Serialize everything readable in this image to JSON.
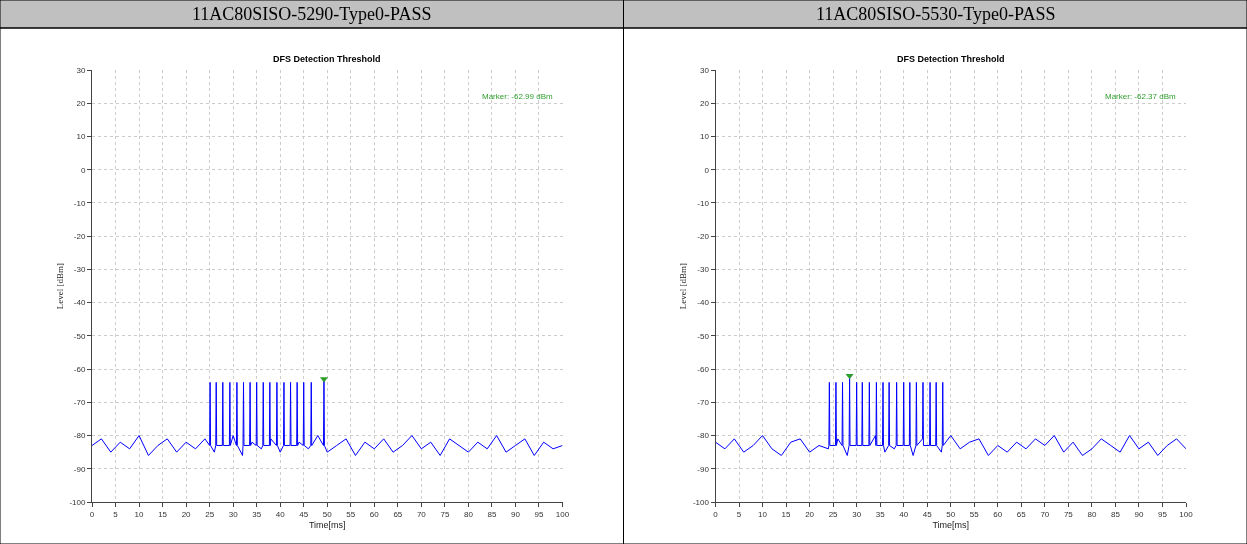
{
  "chart_data": [
    {
      "type": "line",
      "title": "11AC80SISO-5290-Type0-PASS",
      "subtitle": "DFS Detection Threshold",
      "xlabel": "Time[ms]",
      "ylabel": "Level [dBm]",
      "annotations": [
        "Marker: -62.99 dBm"
      ],
      "xlim": [
        0,
        100
      ],
      "xticks": [
        0,
        5,
        10,
        15,
        20,
        25,
        30,
        35,
        40,
        45,
        50,
        55,
        60,
        65,
        70,
        75,
        80,
        85,
        90,
        95,
        100
      ],
      "ylim": [
        -100,
        30
      ],
      "yticks": [
        -100,
        -90,
        -80,
        -70,
        -60,
        -50,
        -40,
        -30,
        -20,
        -10,
        0,
        10,
        20,
        30
      ],
      "grid": true,
      "series": [
        {
          "color": "#0000ff",
          "x": [
            0,
            2,
            4,
            6,
            8,
            10,
            12,
            14,
            16,
            18,
            20,
            22,
            24,
            25.0,
            25.1,
            25.2,
            26,
            26.3,
            26.4,
            26.5,
            27.7,
            27.8,
            27.9,
            28,
            29.2,
            29.3,
            29.4,
            30,
            30.7,
            30.8,
            30.9,
            32,
            32.1,
            32.2,
            32.3,
            33.5,
            33.6,
            33.7,
            34,
            34.9,
            35.0,
            35.1,
            36,
            36.3,
            36.4,
            36.5,
            37.7,
            37.8,
            37.9,
            38,
            39.2,
            39.3,
            39.4,
            40,
            40.7,
            40.8,
            40.9,
            42,
            42.1,
            42.2,
            42.3,
            43.5,
            43.6,
            43.7,
            44,
            44.9,
            45.0,
            45.1,
            46,
            46.5,
            46.6,
            46.7,
            48,
            49.2,
            49.3,
            49.4,
            50,
            52,
            54,
            56,
            58,
            60,
            62,
            64,
            66,
            68,
            70,
            72,
            74,
            76,
            78,
            80,
            82,
            84,
            86,
            88,
            90,
            92,
            94,
            96,
            98,
            100
          ],
          "values": [
            -83,
            -81,
            -85,
            -82,
            -84,
            -80,
            -86,
            -83,
            -81,
            -85,
            -82,
            -84,
            -81,
            -83,
            -64,
            -83,
            -85,
            -83,
            -64,
            -83,
            -83,
            -64,
            -83,
            -83,
            -83,
            -64,
            -83,
            -80,
            -83,
            -64,
            -83,
            -86,
            -83,
            -64,
            -83,
            -83,
            -64,
            -83,
            -82,
            -83,
            -64,
            -83,
            -84,
            -83,
            -64,
            -83,
            -83,
            -64,
            -83,
            -81,
            -83,
            -64,
            -83,
            -85,
            -83,
            -64,
            -83,
            -83,
            -83,
            -64,
            -83,
            -83,
            -64,
            -83,
            -82,
            -83,
            -64,
            -83,
            -84,
            -83,
            -64,
            -83,
            -80,
            -83,
            -63,
            -83,
            -85,
            -83,
            -81,
            -86,
            -82,
            -84,
            -81,
            -85,
            -83,
            -80,
            -84,
            -82,
            -86,
            -81,
            -83,
            -85,
            -82,
            -84,
            -80,
            -85,
            -83,
            -81,
            -86,
            -82,
            -84,
            -83
          ]
        },
        {
          "type": "scatter",
          "marker": "triangle",
          "color": "#2e9e2e",
          "x": [
            49.3
          ],
          "values": [
            -63
          ]
        }
      ]
    },
    {
      "type": "line",
      "title": "11AC80SISO-5530-Type0-PASS",
      "subtitle": "DFS Detection Threshold",
      "xlabel": "Time[ms]",
      "ylabel": "Level [dBm]",
      "annotations": [
        "Marker: -62.37 dBm"
      ],
      "xlim": [
        0,
        100
      ],
      "xticks": [
        0,
        5,
        10,
        15,
        20,
        25,
        30,
        35,
        40,
        45,
        50,
        55,
        60,
        65,
        70,
        75,
        80,
        85,
        90,
        95,
        100
      ],
      "ylim": [
        -100,
        30
      ],
      "yticks": [
        -100,
        -90,
        -80,
        -70,
        -60,
        -50,
        -40,
        -30,
        -20,
        -10,
        0,
        10,
        20,
        30
      ],
      "grid": true,
      "series": [
        {
          "color": "#0000ff",
          "x": [
            0,
            2,
            4,
            6,
            8,
            10,
            12,
            14,
            16,
            18,
            20,
            22,
            24,
            24.1,
            24.2,
            24.3,
            25.5,
            25.6,
            25.7,
            26,
            26.9,
            27.0,
            27.1,
            28,
            28.4,
            28.5,
            28.6,
            29.9,
            30.0,
            30.1,
            31.1,
            31.2,
            31.3,
            32,
            32.6,
            32.7,
            32.8,
            34,
            34.1,
            34.2,
            34.3,
            35.5,
            35.6,
            35.7,
            36,
            36.8,
            36.9,
            37.0,
            38,
            38.4,
            38.5,
            38.6,
            39.9,
            40.0,
            40.1,
            41.2,
            41.3,
            41.4,
            42,
            42.6,
            42.7,
            42.8,
            44,
            44.1,
            44.2,
            45.5,
            45.6,
            45.7,
            46,
            46.8,
            46.9,
            47.0,
            48,
            48.2,
            48.3,
            48.4,
            50,
            52,
            54,
            56,
            58,
            60,
            62,
            64,
            66,
            68,
            70,
            72,
            74,
            76,
            78,
            80,
            82,
            84,
            86,
            88,
            90,
            92,
            94,
            96,
            98,
            100
          ],
          "values": [
            -82,
            -84,
            -81,
            -85,
            -83,
            -80,
            -84,
            -86,
            -82,
            -81,
            -85,
            -83,
            -84,
            -83,
            -64,
            -83,
            -83,
            -64,
            -83,
            -81,
            -83,
            -64,
            -83,
            -86,
            -83,
            -62,
            -83,
            -83,
            -64,
            -83,
            -83,
            -64,
            -83,
            -83,
            -83,
            -64,
            -83,
            -80,
            -83,
            -64,
            -83,
            -83,
            -64,
            -83,
            -85,
            -83,
            -64,
            -83,
            -84,
            -83,
            -64,
            -83,
            -83,
            -64,
            -83,
            -83,
            -64,
            -83,
            -86,
            -83,
            -64,
            -83,
            -81,
            -64,
            -83,
            -83,
            -64,
            -83,
            -83,
            -83,
            -64,
            -83,
            -85,
            -83,
            -64,
            -83,
            -80,
            -84,
            -82,
            -81,
            -86,
            -83,
            -85,
            -82,
            -84,
            -81,
            -83,
            -80,
            -85,
            -82,
            -86,
            -84,
            -81,
            -83,
            -85,
            -80,
            -84,
            -82,
            -86,
            -83,
            -81,
            -84
          ]
        },
        {
          "type": "scatter",
          "marker": "triangle",
          "color": "#2e9e2e",
          "x": [
            28.5
          ],
          "values": [
            -62
          ]
        }
      ]
    }
  ]
}
